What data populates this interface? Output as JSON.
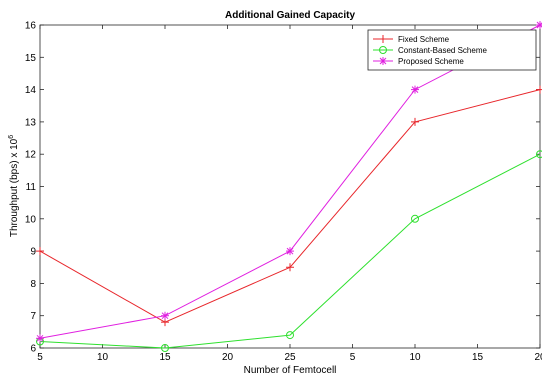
{
  "chart_data": {
    "type": "line",
    "title": "Additional Gained Capacity",
    "xlabel": "Number of Femtocell",
    "ylabel": "Throughput (bps) x 10",
    "ylabel_exponent": "6",
    "x_tick_labels": [
      "5",
      "10",
      "15",
      "20",
      "25",
      "5",
      "10",
      "15",
      "20"
    ],
    "x_tick_positions": [
      0,
      1,
      2,
      3,
      4,
      5,
      6,
      7,
      8
    ],
    "xlim": [
      0,
      8
    ],
    "ylim": [
      6,
      16
    ],
    "y_ticks": [
      6,
      7,
      8,
      9,
      10,
      11,
      12,
      13,
      14,
      15,
      16
    ],
    "grid": false,
    "legend_position": "top-right",
    "series": [
      {
        "name": "Fixed Scheme",
        "color": "#e8262b",
        "marker": "plus",
        "x": [
          0,
          2,
          4,
          6,
          8
        ],
        "y": [
          9,
          6.8,
          8.5,
          13,
          14
        ]
      },
      {
        "name": "Constant-Based Scheme",
        "color": "#2ee02e",
        "marker": "circle",
        "x": [
          0,
          2,
          4,
          6,
          8
        ],
        "y": [
          6.2,
          6.0,
          6.4,
          10,
          12
        ]
      },
      {
        "name": "Proposed Scheme",
        "color": "#e020e0",
        "marker": "star",
        "x": [
          0,
          2,
          4,
          6,
          8
        ],
        "y": [
          6.3,
          7.0,
          9.0,
          14,
          16
        ]
      }
    ]
  }
}
